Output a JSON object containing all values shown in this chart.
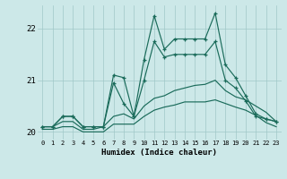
{
  "xlabel": "Humidex (Indice chaleur)",
  "x_values": [
    0,
    1,
    2,
    3,
    4,
    5,
    6,
    7,
    8,
    9,
    10,
    11,
    12,
    13,
    14,
    15,
    16,
    17,
    18,
    19,
    20,
    21,
    22,
    23
  ],
  "line1": [
    20.1,
    20.1,
    20.3,
    20.3,
    20.1,
    20.1,
    20.1,
    21.1,
    21.05,
    20.3,
    21.4,
    22.25,
    21.6,
    21.8,
    21.8,
    21.8,
    21.8,
    22.3,
    21.3,
    21.05,
    20.7,
    20.35,
    20.25,
    20.2
  ],
  "line2": [
    20.1,
    20.1,
    20.3,
    20.3,
    20.1,
    20.1,
    20.1,
    20.95,
    20.55,
    20.3,
    21.0,
    21.75,
    21.45,
    21.5,
    21.5,
    21.5,
    21.5,
    21.75,
    21.0,
    20.85,
    20.6,
    20.3,
    20.25,
    20.2
  ],
  "line3": [
    20.1,
    20.1,
    20.2,
    20.2,
    20.05,
    20.05,
    20.1,
    20.3,
    20.35,
    20.25,
    20.5,
    20.65,
    20.7,
    20.8,
    20.85,
    20.9,
    20.92,
    21.0,
    20.8,
    20.68,
    20.62,
    20.5,
    20.38,
    20.2
  ],
  "line4": [
    20.05,
    20.05,
    20.1,
    20.1,
    20.0,
    20.0,
    20.0,
    20.15,
    20.15,
    20.15,
    20.3,
    20.42,
    20.48,
    20.52,
    20.58,
    20.58,
    20.58,
    20.62,
    20.55,
    20.48,
    20.42,
    20.32,
    20.18,
    20.1
  ],
  "line_color": "#1a6b5a",
  "bg_color": "#cce8e8",
  "grid_color": "#a0c8c8",
  "ylim": [
    19.85,
    22.45
  ],
  "yticks": [
    20,
    21,
    22
  ]
}
